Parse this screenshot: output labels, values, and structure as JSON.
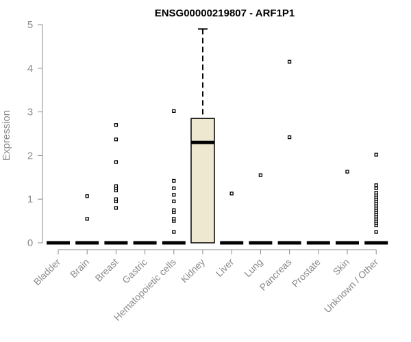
{
  "chart_data": {
    "type": "box",
    "title": "ENSG00000219807 - ARF1P1",
    "xlabel": "",
    "ylabel": "Expression",
    "ylim": [
      0,
      5
    ],
    "yticks": [
      "0",
      "1",
      "2",
      "3",
      "4",
      "5"
    ],
    "categories": [
      "Bladder",
      "Brain",
      "Breast",
      "Gastric",
      "Hematopoietic cells",
      "Kidney",
      "Liver",
      "Lung",
      "Pancreas",
      "Prostate",
      "Skin",
      "Unknown / Other"
    ],
    "boxes": [
      {
        "category": "Bladder",
        "q1": 0,
        "median": 0,
        "q3": 0,
        "whisker_low": 0,
        "whisker_high": 0,
        "outliers": []
      },
      {
        "category": "Brain",
        "q1": 0,
        "median": 0,
        "q3": 0,
        "whisker_low": 0,
        "whisker_high": 0,
        "outliers": [
          0.55,
          1.07
        ]
      },
      {
        "category": "Breast",
        "q1": 0,
        "median": 0,
        "q3": 0,
        "whisker_low": 0,
        "whisker_high": 0,
        "outliers": [
          0.8,
          0.95,
          1.0,
          1.2,
          1.25,
          1.3,
          1.85,
          2.37,
          2.7
        ]
      },
      {
        "category": "Gastric",
        "q1": 0,
        "median": 0,
        "q3": 0,
        "whisker_low": 0,
        "whisker_high": 0,
        "outliers": []
      },
      {
        "category": "Hematopoietic cells",
        "q1": 0,
        "median": 0,
        "q3": 0,
        "whisker_low": 0,
        "whisker_high": 0,
        "outliers": [
          0.25,
          0.5,
          0.55,
          0.7,
          0.75,
          0.95,
          1.1,
          1.25,
          1.42,
          3.02
        ]
      },
      {
        "category": "Kidney",
        "q1": 0,
        "median": 2.3,
        "q3": 2.85,
        "whisker_low": 0,
        "whisker_high": 4.9,
        "outliers": []
      },
      {
        "category": "Liver",
        "q1": 0,
        "median": 0,
        "q3": 0,
        "whisker_low": 0,
        "whisker_high": 0,
        "outliers": [
          1.13
        ]
      },
      {
        "category": "Lung",
        "q1": 0,
        "median": 0,
        "q3": 0,
        "whisker_low": 0,
        "whisker_high": 0,
        "outliers": [
          1.55
        ]
      },
      {
        "category": "Pancreas",
        "q1": 0,
        "median": 0,
        "q3": 0,
        "whisker_low": 0,
        "whisker_high": 0,
        "outliers": [
          2.42,
          4.15
        ]
      },
      {
        "category": "Prostate",
        "q1": 0,
        "median": 0,
        "q3": 0,
        "whisker_low": 0,
        "whisker_high": 0,
        "outliers": []
      },
      {
        "category": "Skin",
        "q1": 0,
        "median": 0,
        "q3": 0,
        "whisker_low": 0,
        "whisker_high": 0,
        "outliers": [
          1.63
        ]
      },
      {
        "category": "Unknown / Other",
        "q1": 0,
        "median": 0,
        "q3": 0,
        "whisker_low": 0,
        "whisker_high": 0,
        "outliers": [
          0.25,
          0.4,
          0.45,
          0.5,
          0.55,
          0.6,
          0.65,
          0.7,
          0.75,
          0.8,
          0.85,
          0.9,
          0.95,
          1.0,
          1.05,
          1.1,
          1.15,
          1.25,
          1.32,
          2.02
        ]
      }
    ],
    "box_fill": "#ede8cf",
    "line_color": "#000000",
    "axis_text_color": "#8a8a8a",
    "grid": false,
    "legend": "none"
  }
}
